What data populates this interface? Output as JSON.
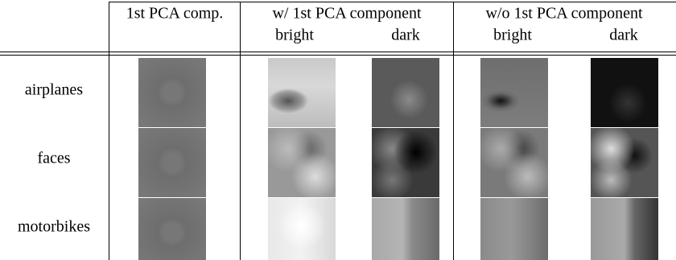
{
  "table": {
    "header": {
      "columns": [
        "1st PCA comp.",
        "w/ 1st PCA component",
        "w/o 1st PCA component"
      ],
      "subcolumns": [
        "bright",
        "dark",
        "bright",
        "dark"
      ]
    },
    "rows": [
      "airplanes",
      "faces",
      "motorbikes"
    ]
  }
}
